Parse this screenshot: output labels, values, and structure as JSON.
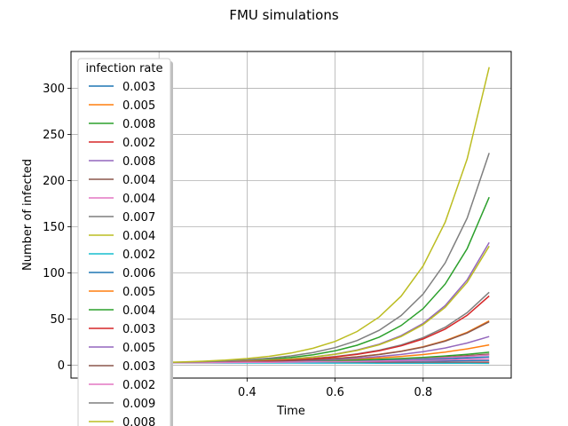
{
  "chart_data": {
    "type": "line",
    "title": "FMU simulations",
    "xlabel": "Time",
    "ylabel": "Number of infected",
    "xlim": [
      0.0,
      1.0
    ],
    "ylim": [
      -14,
      340
    ],
    "x_ticks": [
      0.2,
      0.4,
      0.6,
      0.8
    ],
    "x_tick_labels": [
      ".2",
      "0.4",
      "0.6",
      "0.8"
    ],
    "y_ticks": [
      0,
      50,
      100,
      150,
      200,
      250,
      300
    ],
    "y_tick_labels": [
      "0",
      "50",
      "100",
      "150",
      "200",
      "250",
      "300"
    ],
    "grid": true,
    "legend": {
      "title": "infection rate",
      "placement": "top-left"
    },
    "x": [
      0.15,
      0.2,
      0.25,
      0.3,
      0.35,
      0.4,
      0.45,
      0.5,
      0.55,
      0.6,
      0.65,
      0.7,
      0.75,
      0.8,
      0.85,
      0.9,
      0.95
    ],
    "series": [
      {
        "name": "0.003",
        "color": "#1f77b4",
        "final": 5,
        "k": 1.2
      },
      {
        "name": "0.005",
        "color": "#ff7f0e",
        "final": 22,
        "k": 5.0
      },
      {
        "name": "0.008",
        "color": "#2ca02c",
        "final": 182,
        "k": 7.4
      },
      {
        "name": "0.002",
        "color": "#d62728",
        "final": 3,
        "k": 0.8
      },
      {
        "name": "0.008",
        "color": "#9467bd",
        "final": 133,
        "k": 7.4
      },
      {
        "name": "0.004",
        "color": "#8c564b",
        "final": 12,
        "k": 4.0
      },
      {
        "name": "0.004",
        "color": "#e377c2",
        "final": 11,
        "k": 4.0
      },
      {
        "name": "0.007",
        "color": "#7f7f7f",
        "final": 79,
        "k": 6.8
      },
      {
        "name": "0.004",
        "color": "#bcbd22",
        "final": 129,
        "k": 7.4
      },
      {
        "name": "0.002",
        "color": "#17becf",
        "final": 2,
        "k": 0.5
      },
      {
        "name": "0.006",
        "color": "#1f77b4",
        "final": 9,
        "k": 3.5
      },
      {
        "name": "0.005",
        "color": "#ff7f0e",
        "final": 48,
        "k": 6.3
      },
      {
        "name": "0.004",
        "color": "#2ca02c",
        "final": 14,
        "k": 4.2
      },
      {
        "name": "0.003",
        "color": "#d62728",
        "final": 75,
        "k": 6.8
      },
      {
        "name": "0.005",
        "color": "#9467bd",
        "final": 31,
        "k": 5.6
      },
      {
        "name": "0.003",
        "color": "#8c564b",
        "final": 47,
        "k": 6.3
      },
      {
        "name": "0.002",
        "color": "#e377c2",
        "final": 7,
        "k": 3.0
      },
      {
        "name": "0.009",
        "color": "#7f7f7f",
        "final": 230,
        "k": 7.4
      },
      {
        "name": "0.008",
        "color": "#bcbd22",
        "final": 323,
        "k": 7.4
      }
    ]
  }
}
